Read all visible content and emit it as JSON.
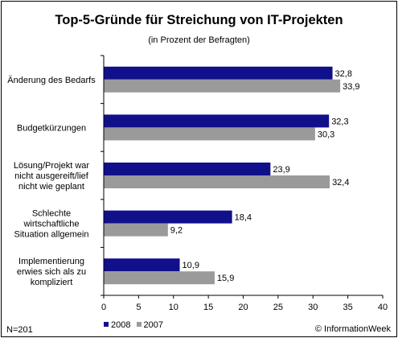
{
  "chart_data": {
    "type": "bar",
    "orientation": "horizontal",
    "title": "Top-5-Gründe für Streichung von IT-Projekten",
    "subtitle": "(in Prozent der Befragten)",
    "categories": [
      "Änderung des Bedarfs",
      "Budgetkürzungen",
      "Lösung/Projekt war nicht ausgereift/lief nicht wie geplant",
      "Schlechte wirtschaftliche Situation allgemein",
      "Implementierung erwies sich als zu kompliziert"
    ],
    "category_lines": [
      [
        "Änderung des Bedarfs"
      ],
      [
        "Budgetkürzungen"
      ],
      [
        "Lösung/Projekt war",
        "nicht ausgereift/lief",
        "nicht wie geplant"
      ],
      [
        "Schlechte",
        "wirtschaftliche",
        "Situation allgemein"
      ],
      [
        "Implementierung",
        "erwies sich als zu",
        "kompliziert"
      ]
    ],
    "series": [
      {
        "name": "2008",
        "color": "#10108a",
        "values": [
          32.8,
          32.3,
          23.9,
          18.4,
          10.9
        ],
        "labels": [
          "32,8",
          "32,3",
          "23,9",
          "18,4",
          "10,9"
        ]
      },
      {
        "name": "2007",
        "color": "#9a9a9a",
        "values": [
          33.9,
          30.3,
          32.4,
          9.2,
          15.9
        ],
        "labels": [
          "33,9",
          "30,3",
          "32,4",
          "9,2",
          "15,9"
        ]
      }
    ],
    "xlim": [
      0,
      40
    ],
    "xticks": [
      0,
      5,
      10,
      15,
      20,
      25,
      30,
      35,
      40
    ],
    "grid": false,
    "legend_position": "bottom-left",
    "xlabel": "",
    "ylabel": ""
  },
  "footer": {
    "sample": "N=201",
    "source": "© InformationWeek"
  }
}
